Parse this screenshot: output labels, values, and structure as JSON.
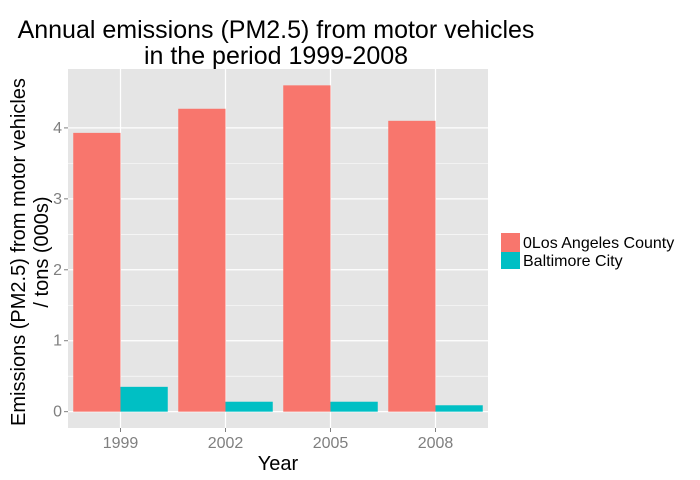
{
  "chart_data": {
    "type": "bar",
    "title_lines": [
      "Annual emissions (PM2.5) from motor vehicles",
      "in the period 1999-2008"
    ],
    "xlabel": "Year",
    "ylabel_lines": [
      "Emissions (PM2.5) from motor vehicles",
      "/ tons (000s)"
    ],
    "categories": [
      "1999",
      "2002",
      "2005",
      "2008"
    ],
    "series": [
      {
        "name": "0Los Angeles County",
        "color": "#f8766d",
        "values": [
          3.93,
          4.27,
          4.6,
          4.1
        ]
      },
      {
        "name": "Baltimore City",
        "color": "#00bfc4",
        "values": [
          0.35,
          0.14,
          0.14,
          0.09
        ]
      }
    ],
    "yticks": [
      0,
      1,
      2,
      3,
      4
    ],
    "ylim": [
      -0.2304,
      4.8304
    ],
    "grid": true,
    "legend_position": "right",
    "panel_color": "#e5e5e5",
    "grid_color": "#ffffff"
  }
}
